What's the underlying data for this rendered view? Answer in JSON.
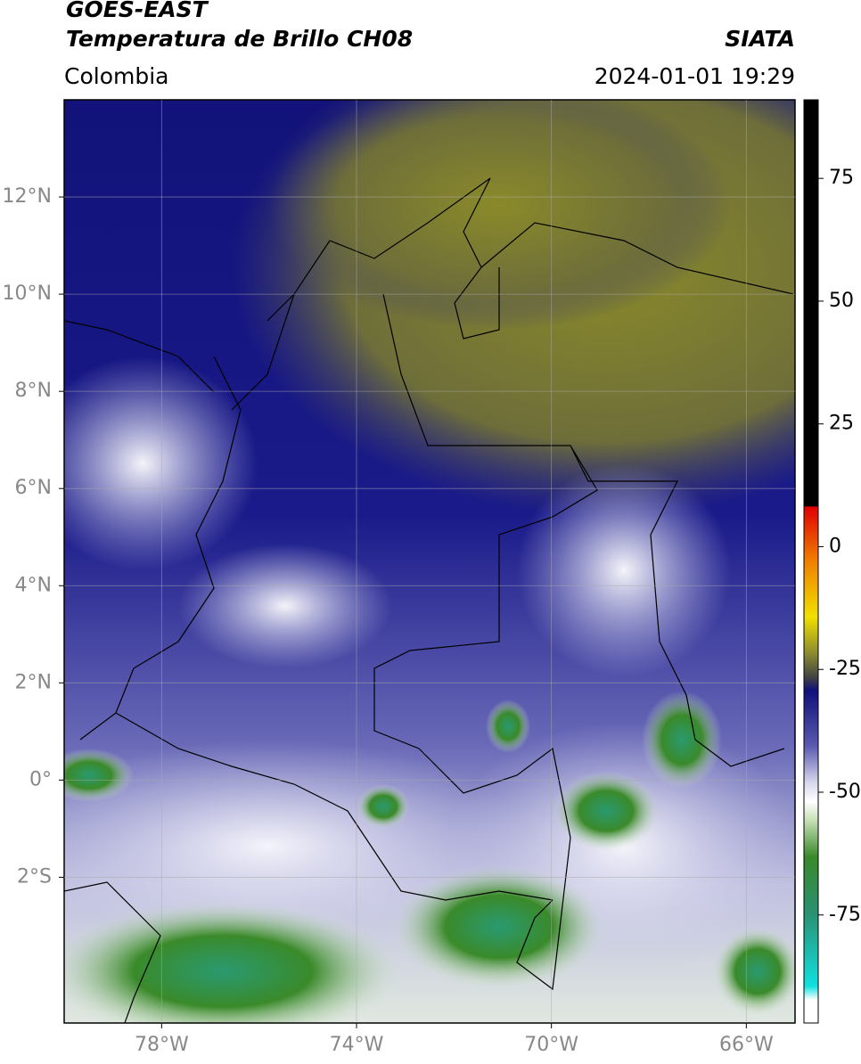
{
  "header": {
    "title": "GOES-EAST",
    "subtitle": "Temperatura de Brillo CH08",
    "source": "SIATA",
    "region": "Colombia",
    "datetime": "2024-01-01 19:29"
  },
  "map": {
    "xlim": [
      -80,
      -65
    ],
    "ylim": [
      -5,
      14
    ],
    "xticks": [
      {
        "value": -78,
        "label": "78°W"
      },
      {
        "value": -74,
        "label": "74°W"
      },
      {
        "value": -70,
        "label": "70°W"
      },
      {
        "value": -66,
        "label": "66°W"
      }
    ],
    "yticks": [
      {
        "value": 12,
        "label": "12°N"
      },
      {
        "value": 10,
        "label": "10°N"
      },
      {
        "value": 8,
        "label": "8°N"
      },
      {
        "value": 6,
        "label": "6°N"
      },
      {
        "value": 4,
        "label": "4°N"
      },
      {
        "value": 2,
        "label": "2°N"
      },
      {
        "value": 0,
        "label": "0°"
      },
      {
        "value": -2,
        "label": "2°S"
      }
    ],
    "grid": true
  },
  "colorbar": {
    "lim": [
      -97,
      91
    ],
    "ticks": [
      75,
      50,
      25,
      0,
      -25,
      -50,
      -75
    ]
  }
}
